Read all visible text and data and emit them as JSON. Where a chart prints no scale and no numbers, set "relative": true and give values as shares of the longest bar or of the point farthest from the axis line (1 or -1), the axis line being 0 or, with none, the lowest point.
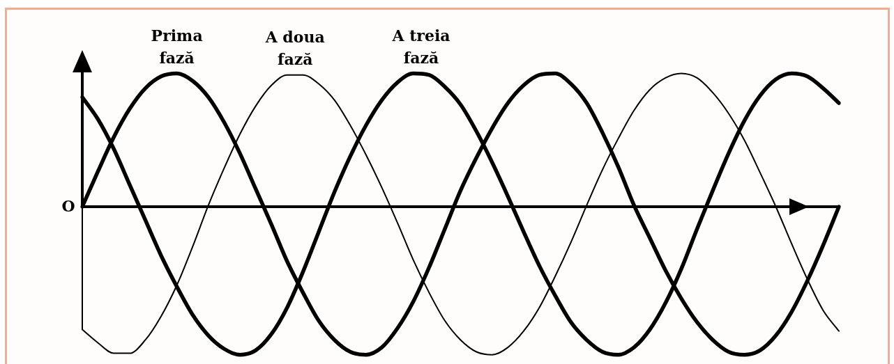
{
  "chart_data": {
    "type": "line",
    "relative": true,
    "categories": [
      null,
      null,
      null,
      null,
      null,
      null,
      null,
      null,
      null,
      null,
      null,
      null,
      null,
      null,
      null,
      null,
      null,
      null,
      null,
      null,
      null,
      null,
      null,
      null,
      null,
      null,
      null,
      null,
      null,
      null,
      null,
      null,
      null,
      null,
      null,
      null,
      null,
      null,
      null,
      null,
      null,
      null,
      null,
      null,
      null,
      null,
      null,
      null,
      null
    ],
    "annotations": [
      "O"
    ],
    "series": [
      {
        "name": "Prima fază",
        "color": "#000000",
        "values": [
          0,
          0.24,
          0.47,
          0.66,
          0.8,
          0.88,
          0.9,
          0.85,
          0.74,
          0.57,
          0.36,
          0.12,
          -0.12,
          -0.37,
          -0.58,
          -0.77,
          -0.9,
          -0.98,
          -1.0,
          -0.95,
          -0.82,
          -0.64,
          -0.41,
          -0.15,
          0.11,
          0.33,
          0.53,
          0.7,
          0.82,
          0.89,
          0.9,
          0.83,
          0.7,
          0.5,
          0.27,
          0.01,
          -0.21,
          -0.43,
          -0.62,
          -0.78,
          -0.9,
          -0.98,
          -1.0,
          -0.97,
          -0.87,
          -0.71,
          -0.5,
          -0.26,
          0
        ]
      },
      {
        "name": "A doua fază",
        "color": "#000000",
        "values": [
          -0.83,
          -0.92,
          -0.99,
          -0.99,
          -0.9,
          -0.74,
          -0.53,
          -0.27,
          0.01,
          0.26,
          0.49,
          0.68,
          0.82,
          0.89,
          0.89,
          0.83,
          0.72,
          0.55,
          0.35,
          0.13,
          -0.11,
          -0.36,
          -0.58,
          -0.77,
          -0.9,
          -0.98,
          -1.0,
          -0.95,
          -0.84,
          -0.68,
          -0.47,
          -0.24,
          0.01,
          0.25,
          0.46,
          0.65,
          0.79,
          0.87,
          0.9,
          0.87,
          0.77,
          0.63,
          0.45,
          0.23,
          0,
          -0.25,
          -0.49,
          -0.7,
          -0.84
        ]
      },
      {
        "name": "A treia fază",
        "color": "#000000",
        "values": [
          0.74,
          0.59,
          0.39,
          0.15,
          -0.09,
          -0.33,
          -0.54,
          -0.73,
          -0.87,
          -0.96,
          -1.0,
          -0.97,
          -0.86,
          -0.68,
          -0.44,
          -0.17,
          0.1,
          0.34,
          0.55,
          0.72,
          0.84,
          0.9,
          0.89,
          0.81,
          0.69,
          0.51,
          0.3,
          0.07,
          -0.17,
          -0.4,
          -0.6,
          -0.78,
          -0.9,
          -0.98,
          -1.0,
          -0.95,
          -0.83,
          -0.65,
          -0.42,
          -0.15,
          0.11,
          0.36,
          0.58,
          0.75,
          0.86,
          0.9,
          0.88,
          0.8,
          0.7
        ]
      }
    ]
  }
}
